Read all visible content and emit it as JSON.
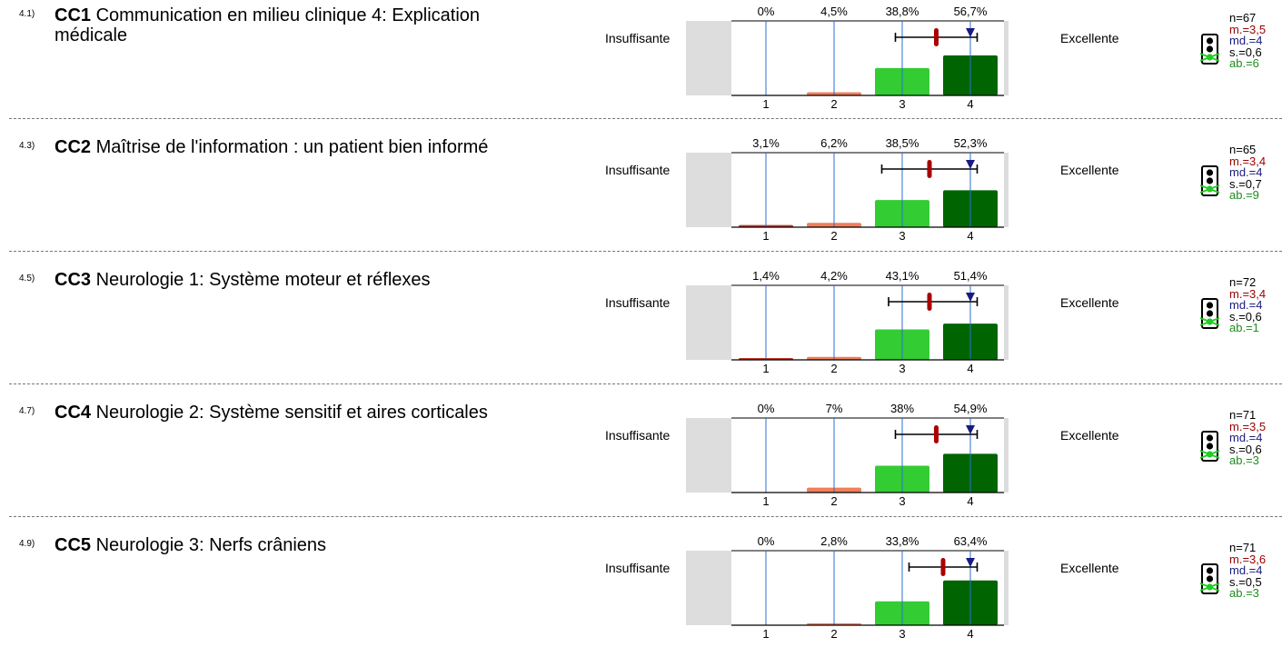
{
  "scale": {
    "left_label": "Insuffisante",
    "right_label": "Excellente",
    "categories": [
      "1",
      "2",
      "3",
      "4"
    ]
  },
  "colors": {
    "cat1": "#c0392b",
    "cat2": "#f07f5a",
    "cat3": "#33cc33",
    "cat4": "#006400",
    "mean_marker": "#aa0000",
    "median_marker": "#1a1a80",
    "side_panel": "#dddddd",
    "gridline": "#2a6fcf"
  },
  "items": [
    {
      "number": "4.1)",
      "code": "CC1",
      "title": "Communication en milieu clinique 4: Explication médicale",
      "n": "n=67",
      "m": "m.=3,5",
      "md": "md.=4",
      "s": "s.=0,6",
      "ab": "ab.=6"
    },
    {
      "number": "4.3)",
      "code": "CC2",
      "title": "Maîtrise de l'information : un patient bien informé",
      "n": "n=65",
      "m": "m.=3,4",
      "md": "md.=4",
      "s": "s.=0,7",
      "ab": "ab.=9"
    },
    {
      "number": "4.5)",
      "code": "CC3",
      "title": "Neurologie 1: Système moteur et réflexes",
      "n": "n=72",
      "m": "m.=3,4",
      "md": "md.=4",
      "s": "s.=0,6",
      "ab": "ab.=1"
    },
    {
      "number": "4.7)",
      "code": "CC4",
      "title": "Neurologie 2: Système sensitif et aires corticales",
      "n": "n=71",
      "m": "m.=3,5",
      "md": "md.=4",
      "s": "s.=0,6",
      "ab": "ab.=3"
    },
    {
      "number": "4.9)",
      "code": "CC5",
      "title": "Neurologie 3: Nerfs crâniens",
      "n": "n=71",
      "m": "m.=3,6",
      "md": "md.=4",
      "s": "s.=0,5",
      "ab": "ab.=3"
    }
  ],
  "chart_data": [
    {
      "type": "bar",
      "categories": [
        "1",
        "2",
        "3",
        "4"
      ],
      "values": [
        0,
        4.5,
        38.8,
        56.7
      ],
      "value_labels": [
        "0%",
        "4,5%",
        "38,8%",
        "56,7%"
      ],
      "mean": 3.5,
      "median": 4,
      "std": 0.6,
      "whisker": [
        2.9,
        4.1
      ]
    },
    {
      "type": "bar",
      "categories": [
        "1",
        "2",
        "3",
        "4"
      ],
      "values": [
        3.1,
        6.2,
        38.5,
        52.3
      ],
      "value_labels": [
        "3,1%",
        "6,2%",
        "38,5%",
        "52,3%"
      ],
      "mean": 3.4,
      "median": 4,
      "std": 0.7,
      "whisker": [
        2.7,
        4.1
      ]
    },
    {
      "type": "bar",
      "categories": [
        "1",
        "2",
        "3",
        "4"
      ],
      "values": [
        1.4,
        4.2,
        43.1,
        51.4
      ],
      "value_labels": [
        "1,4%",
        "4,2%",
        "43,1%",
        "51,4%"
      ],
      "mean": 3.4,
      "median": 4,
      "std": 0.6,
      "whisker": [
        2.8,
        4.1
      ]
    },
    {
      "type": "bar",
      "categories": [
        "1",
        "2",
        "3",
        "4"
      ],
      "values": [
        0,
        7,
        38,
        54.9
      ],
      "value_labels": [
        "0%",
        "7%",
        "38%",
        "54,9%"
      ],
      "mean": 3.5,
      "median": 4,
      "std": 0.6,
      "whisker": [
        2.9,
        4.1
      ]
    },
    {
      "type": "bar",
      "categories": [
        "1",
        "2",
        "3",
        "4"
      ],
      "values": [
        0,
        2.8,
        33.8,
        63.4
      ],
      "value_labels": [
        "0%",
        "2,8%",
        "33,8%",
        "63,4%"
      ],
      "mean": 3.6,
      "median": 4,
      "std": 0.5,
      "whisker": [
        3.1,
        4.1
      ]
    }
  ]
}
